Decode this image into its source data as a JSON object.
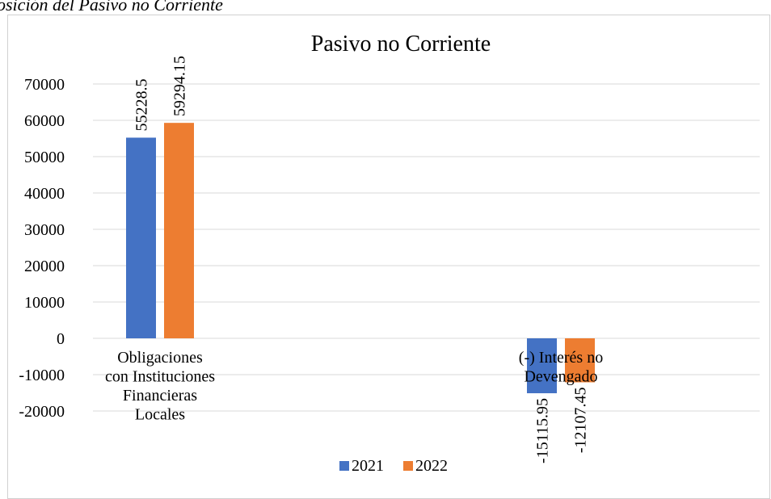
{
  "caption": "osición del Pasivo no Corriente",
  "chart_data": {
    "type": "bar",
    "title": "Pasivo no Corriente",
    "categories": [
      [
        "Obligaciones",
        "con Instituciones",
        "Financieras",
        "Locales"
      ],
      [
        "(-) Interés no",
        "Devengado"
      ]
    ],
    "series": [
      {
        "name": "2021",
        "color": "#4472C4",
        "values": [
          55228.5,
          -15115.95
        ],
        "labels": [
          "55228.5",
          "-15115.95"
        ]
      },
      {
        "name": "2022",
        "color": "#ED7D31",
        "values": [
          59294.15,
          -12107.45
        ],
        "labels": [
          "59294.15",
          "-12107.45"
        ]
      }
    ],
    "yticks": [
      "70000",
      "60000",
      "50000",
      "40000",
      "30000",
      "20000",
      "10000",
      "0",
      "-10000",
      "-20000"
    ],
    "ylim": [
      -20000,
      70000
    ],
    "grid": true,
    "legend": "bottom"
  }
}
